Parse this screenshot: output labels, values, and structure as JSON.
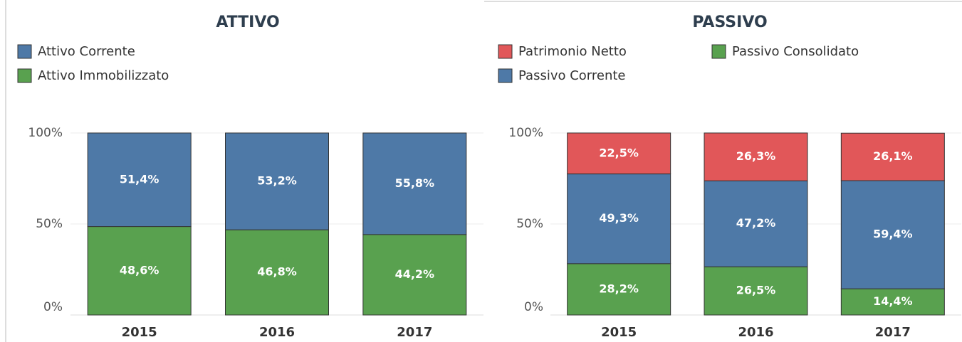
{
  "chart_data": [
    {
      "type": "stacked_bar",
      "title": "ATTIVO",
      "categories": [
        "2015",
        "2016",
        "2017"
      ],
      "series": [
        {
          "name": "Attivo Corrente",
          "color": "#4e79a7",
          "values": [
            51.4,
            53.2,
            55.8
          ],
          "value_labels": [
            "51,4%",
            "53,2%",
            "55,8%"
          ]
        },
        {
          "name": "Attivo Immobilizzato",
          "color": "#59a14f",
          "values": [
            48.6,
            46.8,
            44.2
          ],
          "value_labels": [
            "48,6%",
            "46,8%",
            "44,2%"
          ]
        }
      ],
      "ylim": [
        0,
        100
      ],
      "yticks": [
        {
          "value": 0,
          "label": "0%"
        },
        {
          "value": 50,
          "label": "50%"
        },
        {
          "value": 100,
          "label": "100%"
        }
      ],
      "grid": true
    },
    {
      "type": "stacked_bar",
      "title": "PASSIVO",
      "categories": [
        "2015",
        "2016",
        "2017"
      ],
      "series": [
        {
          "name": "Patrimonio Netto",
          "color": "#e15759",
          "values": [
            22.5,
            26.3,
            26.1
          ],
          "value_labels": [
            "22,5%",
            "26,3%",
            "26,1%"
          ]
        },
        {
          "name": "Passivo Corrente",
          "color": "#4e79a7",
          "values": [
            49.3,
            47.2,
            59.4
          ],
          "value_labels": [
            "49,3%",
            "47,2%",
            "59,4%"
          ]
        },
        {
          "name": "Passivo Consolidato",
          "color": "#59a14f",
          "values": [
            28.2,
            26.5,
            14.4
          ],
          "value_labels": [
            "28,2%",
            "26,5%",
            "14,4%"
          ]
        }
      ],
      "ylim": [
        0,
        100
      ],
      "yticks": [
        {
          "value": 0,
          "label": "0%"
        },
        {
          "value": 50,
          "label": "50%"
        },
        {
          "value": 100,
          "label": "100%"
        }
      ],
      "grid": true
    }
  ]
}
